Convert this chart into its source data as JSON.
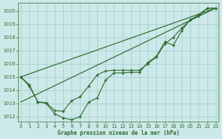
{
  "bg_color": "#cce8e8",
  "grid_color": "#99cccc",
  "line_color": "#2d6b2d",
  "xlabel": "Graphe pression niveau de la mer (hPa)",
  "xlim": [
    -0.3,
    23.3
  ],
  "ylim": [
    1011.6,
    1020.6
  ],
  "yticks": [
    1012,
    1013,
    1014,
    1015,
    1016,
    1017,
    1018,
    1019,
    1020
  ],
  "xticks": [
    0,
    1,
    2,
    3,
    4,
    5,
    6,
    7,
    8,
    9,
    10,
    11,
    12,
    13,
    14,
    15,
    16,
    17,
    18,
    19,
    20,
    21,
    22,
    23
  ],
  "straight1": [
    0,
    1015.0,
    23,
    1020.2
  ],
  "straight2": [
    0,
    1013.1,
    23,
    1020.2
  ],
  "line_deep_y": [
    1015.0,
    1014.4,
    1013.1,
    1013.0,
    1012.2,
    1011.9,
    1011.75,
    1012.0,
    1013.1,
    1013.4,
    1014.75,
    1015.3,
    1015.3,
    1015.35,
    1015.35,
    1016.1,
    1016.55,
    1017.65,
    1017.4,
    1018.5,
    1019.35,
    1019.6,
    1020.2,
    1020.2
  ],
  "line_shallow_y": [
    1015.0,
    1014.3,
    1013.1,
    1013.05,
    1012.45,
    1012.4,
    1013.2,
    1013.5,
    1014.3,
    1015.15,
    1015.45,
    1015.5,
    1015.5,
    1015.5,
    1015.5,
    1016.0,
    1016.5,
    1017.5,
    1018.0,
    1018.7,
    1019.3,
    1019.7,
    1020.2,
    1020.2
  ],
  "figsize": [
    3.2,
    2.0
  ],
  "dpi": 100
}
